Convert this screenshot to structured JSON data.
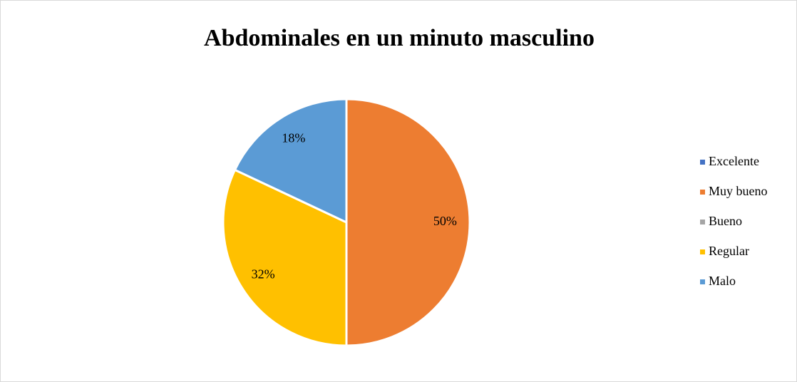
{
  "chart_data": {
    "type": "pie",
    "title": "Abdominales en un minuto masculino",
    "categories": [
      "Excelente",
      "Muy bueno",
      "Bueno",
      "Regular",
      "Malo"
    ],
    "values": [
      0,
      50,
      0,
      32,
      18
    ],
    "value_labels": [
      null,
      "50%",
      null,
      "32%",
      "18%"
    ],
    "colors": [
      "#4472c4",
      "#ed7d31",
      "#a5a5a5",
      "#ffc000",
      "#5b9bd5"
    ],
    "legend": "right"
  }
}
